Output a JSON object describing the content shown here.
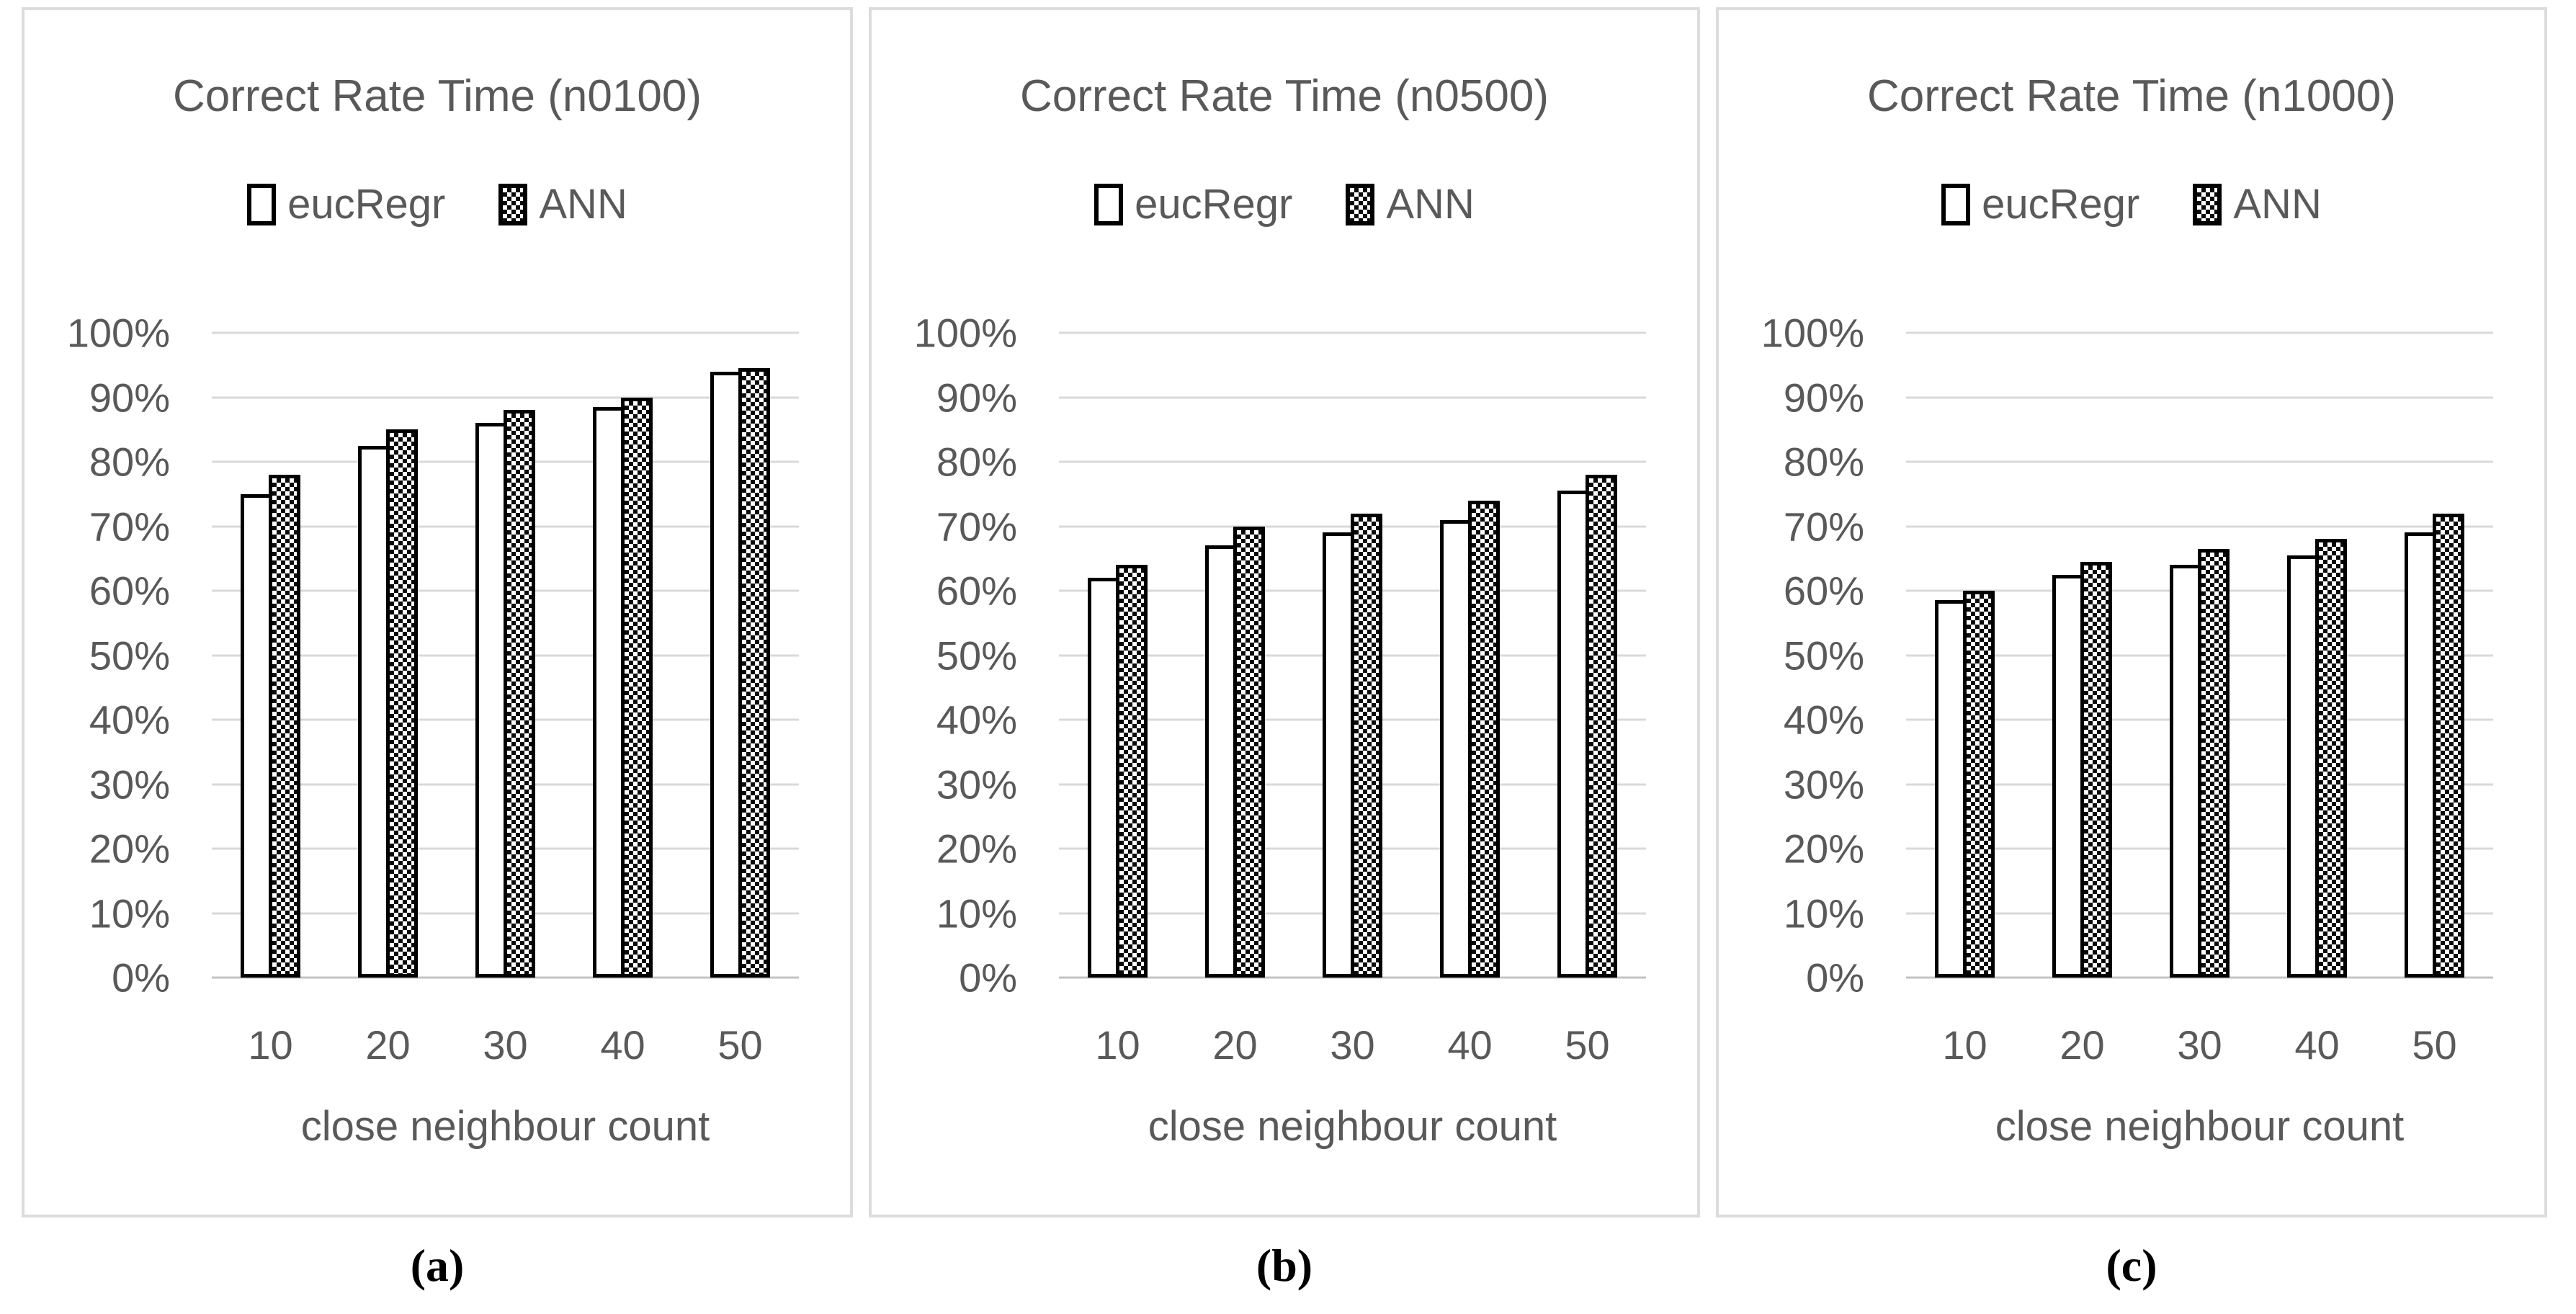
{
  "figure": {
    "captions": [
      "(a)",
      "(b)",
      "(c)"
    ],
    "colors": {
      "text": "#595959",
      "gridline": "#d9d9d9",
      "axis_line": "#c4c4c4",
      "bar_border": "#000000",
      "eucregr_fill": "#ffffff",
      "ann_fill_pattern": "black-white-checkerboard",
      "panel_border": "#dcdcdc",
      "background": "#ffffff"
    }
  },
  "chart_data": [
    {
      "type": "bar",
      "title": "Correct Rate Time (n0100)",
      "xlabel": "close neighbour count",
      "ylabel": "",
      "ylim": [
        0,
        100
      ],
      "grid": true,
      "legend_position": "top",
      "categories": [
        "10",
        "20",
        "30",
        "40",
        "50"
      ],
      "y_tick_labels": [
        "100%",
        "90%",
        "80%",
        "70%",
        "60%",
        "50%",
        "40%",
        "30%",
        "20%",
        "10%",
        "0%"
      ],
      "series": [
        {
          "name": "eucRegr",
          "pattern": "white",
          "values_pct": [
            75,
            82.5,
            86,
            88.5,
            94
          ]
        },
        {
          "name": "ANN",
          "pattern": "checker",
          "values_pct": [
            78,
            85,
            88,
            90,
            94.5
          ]
        }
      ]
    },
    {
      "type": "bar",
      "title": "Correct Rate Time (n0500)",
      "xlabel": "close neighbour count",
      "ylabel": "",
      "ylim": [
        0,
        100
      ],
      "grid": true,
      "legend_position": "top",
      "categories": [
        "10",
        "20",
        "30",
        "40",
        "50"
      ],
      "y_tick_labels": [
        "100%",
        "90%",
        "80%",
        "70%",
        "60%",
        "50%",
        "40%",
        "30%",
        "20%",
        "10%",
        "0%"
      ],
      "series": [
        {
          "name": "eucRegr",
          "pattern": "white",
          "values_pct": [
            62,
            67,
            69,
            71,
            75.5
          ]
        },
        {
          "name": "ANN",
          "pattern": "checker",
          "values_pct": [
            64,
            70,
            72,
            74,
            78
          ]
        }
      ]
    },
    {
      "type": "bar",
      "title": "Correct Rate Time (n1000)",
      "xlabel": "close neighbour count",
      "ylabel": "",
      "ylim": [
        0,
        100
      ],
      "grid": true,
      "legend_position": "top",
      "categories": [
        "10",
        "20",
        "30",
        "40",
        "50"
      ],
      "y_tick_labels": [
        "100%",
        "90%",
        "80%",
        "70%",
        "60%",
        "50%",
        "40%",
        "30%",
        "20%",
        "10%",
        "0%"
      ],
      "series": [
        {
          "name": "eucRegr",
          "pattern": "white",
          "values_pct": [
            58.5,
            62.5,
            64,
            65.5,
            69
          ]
        },
        {
          "name": "ANN",
          "pattern": "checker",
          "values_pct": [
            60,
            64.5,
            66.5,
            68,
            72
          ]
        }
      ]
    }
  ]
}
